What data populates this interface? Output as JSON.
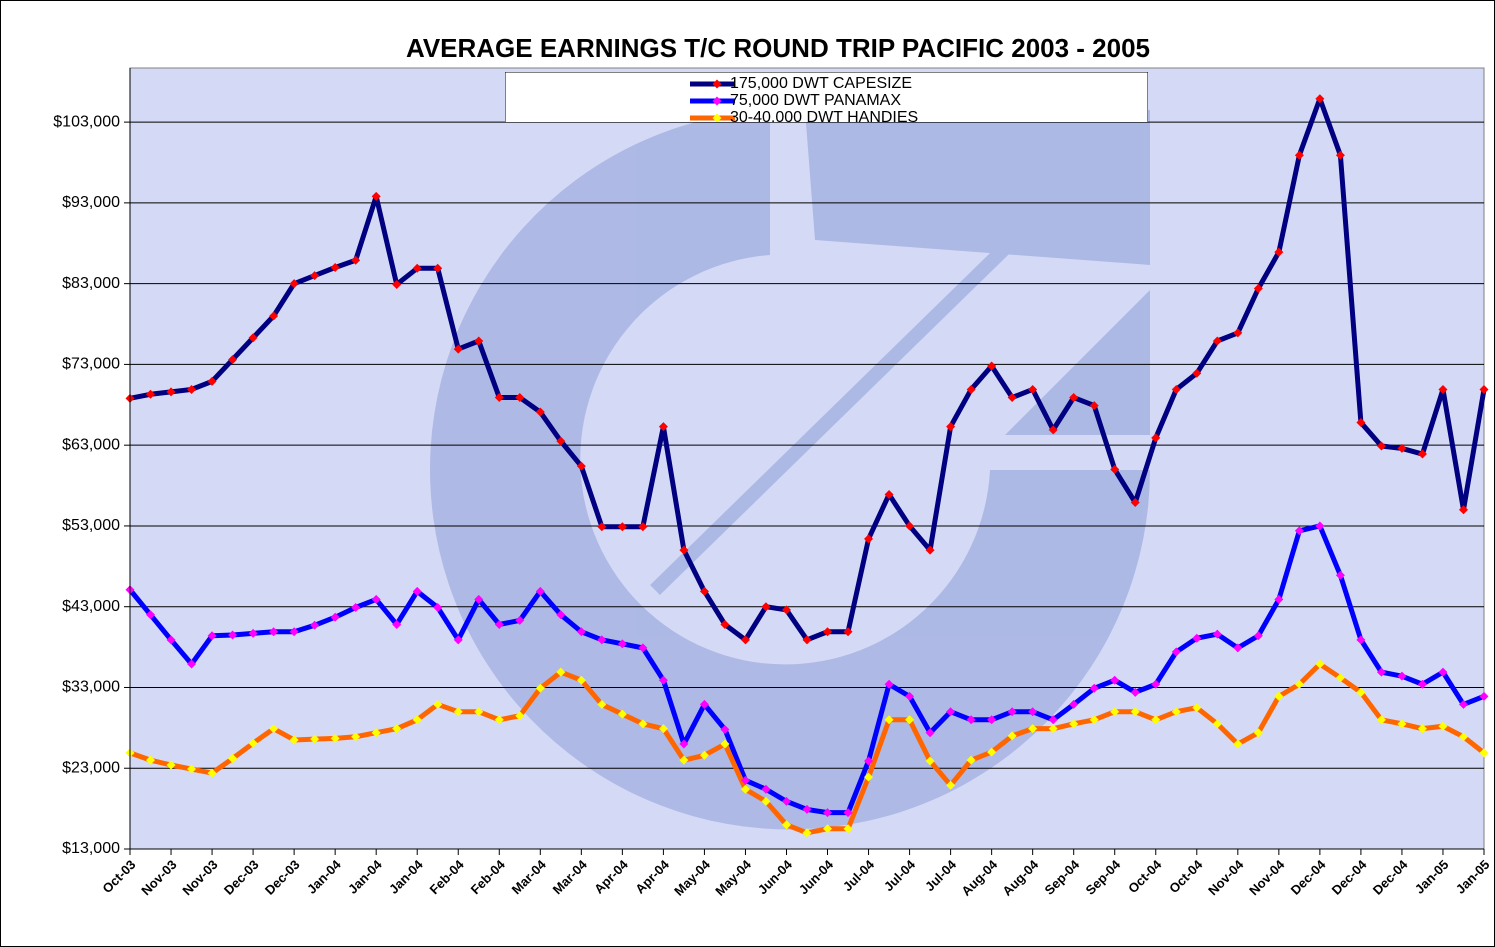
{
  "chart_data": {
    "type": "line",
    "title": "AVERAGE EARNINGS T/C ROUND TRIP PACIFIC 2003 - 2005",
    "categories": [
      "Oct-03",
      null,
      "Nov-03",
      null,
      "Nov-03",
      null,
      "Dec-03",
      null,
      "Dec-03",
      null,
      "Jan-04",
      null,
      "Jan-04",
      null,
      "Jan-04",
      null,
      "Feb-04",
      null,
      "Feb-04",
      null,
      "Mar-04",
      null,
      "Mar-04",
      null,
      "Apr-04",
      null,
      "Apr-04",
      null,
      "May-04",
      null,
      "May-04",
      null,
      "Jun-04",
      null,
      "Jun-04",
      null,
      "Jul-04",
      null,
      "Jul-04",
      null,
      "Jul-04",
      null,
      "Aug-04",
      null,
      "Aug-04",
      null,
      "Sep-04",
      null,
      "Sep-04",
      null,
      "Oct-04",
      null,
      "Oct-04",
      null,
      "Nov-04",
      null,
      "Nov-04",
      null,
      "Dec-04",
      null,
      "Dec-04",
      null,
      "Dec-04",
      null,
      "Jan-05",
      null,
      "Jan-05"
    ],
    "series": [
      {
        "name": "175,000 DWT CAPESIZE",
        "color": "#000080",
        "marker_color": "#ff0000",
        "values": [
          68800,
          69300,
          69600,
          69900,
          70900,
          73600,
          76300,
          79000,
          83000,
          84000,
          85000,
          85900,
          93800,
          82900,
          84900,
          84900,
          74900,
          75900,
          68900,
          68900,
          67100,
          63500,
          60400,
          52900,
          52900,
          52900,
          65300,
          50000,
          44900,
          40800,
          38900,
          43000,
          42600,
          38900,
          39900,
          39900,
          51400,
          56900,
          53000,
          50000,
          65300,
          69900,
          72800,
          68900,
          69900,
          64900,
          68900,
          67900,
          60000,
          55900,
          63900,
          69900,
          71900,
          75900,
          76900,
          82400,
          86900,
          98900,
          105900,
          98900,
          65800,
          62900,
          62600,
          61900,
          69900,
          55000,
          69900
        ]
      },
      {
        "name": "75,000 DWT PANAMAX",
        "color": "#0000ff",
        "marker_color": "#ff00ff",
        "values": [
          45100,
          42000,
          38900,
          35900,
          39400,
          39500,
          39700,
          39900,
          39900,
          40700,
          41700,
          42900,
          43900,
          40800,
          44900,
          42900,
          38900,
          43900,
          40800,
          41300,
          44900,
          42000,
          39900,
          38900,
          38400,
          37900,
          33900,
          26000,
          30900,
          27800,
          21500,
          20400,
          18900,
          17900,
          17500,
          17500,
          23900,
          33400,
          31900,
          27400,
          30000,
          29000,
          29000,
          30000,
          30000,
          29000,
          30900,
          32900,
          33900,
          32400,
          33400,
          37400,
          39100,
          39600,
          37900,
          39400,
          43900,
          52400,
          53000,
          46900,
          38900,
          34900,
          34400,
          33400,
          34900,
          30900,
          31900
        ]
      },
      {
        "name": "30-40,000 DWT HANDIES",
        "color": "#ff6600",
        "marker_color": "#ffff00",
        "values": [
          24900,
          24000,
          23400,
          22900,
          22400,
          24200,
          26100,
          27900,
          26500,
          26600,
          26700,
          26900,
          27400,
          27900,
          29000,
          30900,
          30000,
          30000,
          29000,
          29500,
          32900,
          34900,
          33900,
          30900,
          29700,
          28500,
          27900,
          24000,
          24600,
          26000,
          20400,
          18900,
          16000,
          15000,
          15500,
          15500,
          21900,
          29000,
          29000,
          23900,
          20900,
          24000,
          25000,
          27000,
          27900,
          27900,
          28500,
          29000,
          30000,
          30000,
          29000,
          30000,
          30500,
          28500,
          26000,
          27400,
          31900,
          33400,
          35900,
          34200,
          32400,
          29000,
          28500,
          27900,
          28200,
          26900,
          24900
        ]
      }
    ],
    "ylim": [
      13000,
      109700
    ],
    "yticks": [
      {
        "value": 13000,
        "label": "$13,000"
      },
      {
        "value": 23000,
        "label": "$23,000"
      },
      {
        "value": 33000,
        "label": "$33,000"
      },
      {
        "value": 43000,
        "label": "$43,000"
      },
      {
        "value": 53000,
        "label": "$53,000"
      },
      {
        "value": 63000,
        "label": "$63,000"
      },
      {
        "value": 73000,
        "label": "$73,000"
      },
      {
        "value": 83000,
        "label": "$83,000"
      },
      {
        "value": 93000,
        "label": "$93,000"
      },
      {
        "value": 103000,
        "label": "$103,000"
      }
    ],
    "grid": true,
    "legend": "top"
  }
}
